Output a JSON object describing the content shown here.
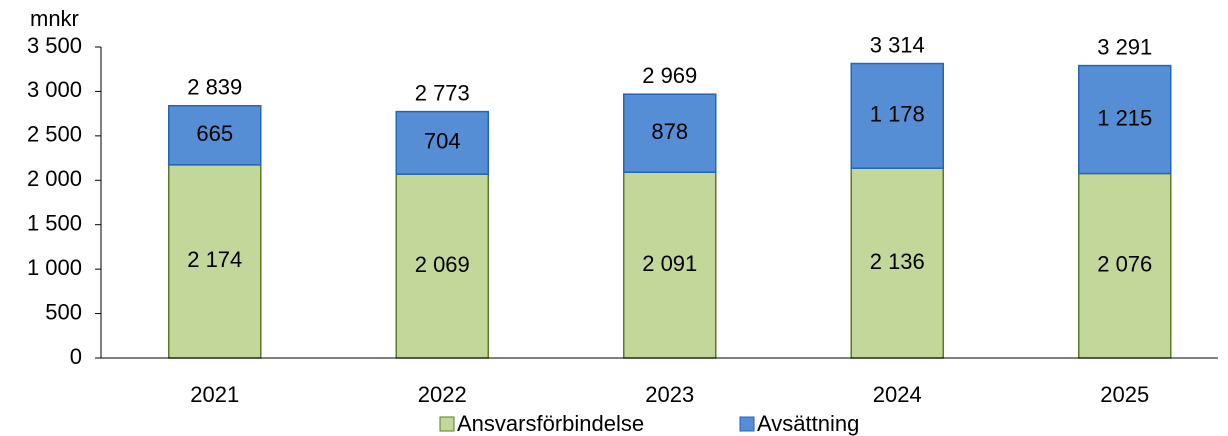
{
  "chart_data": {
    "type": "stacked_bar",
    "y_axis_label": "mnkr",
    "categories": [
      "2021",
      "2022",
      "2023",
      "2024",
      "2025"
    ],
    "series": [
      {
        "name": "Ansvarsförbindelse",
        "color": "#c4d79b",
        "values": [
          2174,
          2069,
          2091,
          2136,
          2076
        ],
        "value_labels": [
          "2 174",
          "2 069",
          "2 091",
          "2 136",
          "2 076"
        ]
      },
      {
        "name": "Avsättning",
        "color": "#558ed5",
        "values": [
          665,
          704,
          878,
          1178,
          1215
        ],
        "value_labels": [
          "665",
          "704",
          "878",
          "1 178",
          "1 215"
        ]
      }
    ],
    "totals": [
      2839,
      2773,
      2969,
      3314,
      3291
    ],
    "total_labels": [
      "2 839",
      "2 773",
      "2 969",
      "3 314",
      "3 291"
    ],
    "ylim": [
      0,
      3500
    ],
    "yticks": [
      0,
      500,
      {
        "value": 1000,
        "label": "1 000"
      },
      {
        "value": 1500,
        "label": "1 500"
      },
      {
        "value": 2000,
        "label": "2 000"
      },
      {
        "value": 2500,
        "label": "2 500"
      },
      {
        "value": 3000,
        "label": "3 000"
      },
      {
        "value": 3500,
        "label": "3 500"
      }
    ],
    "legend": "bottom"
  }
}
